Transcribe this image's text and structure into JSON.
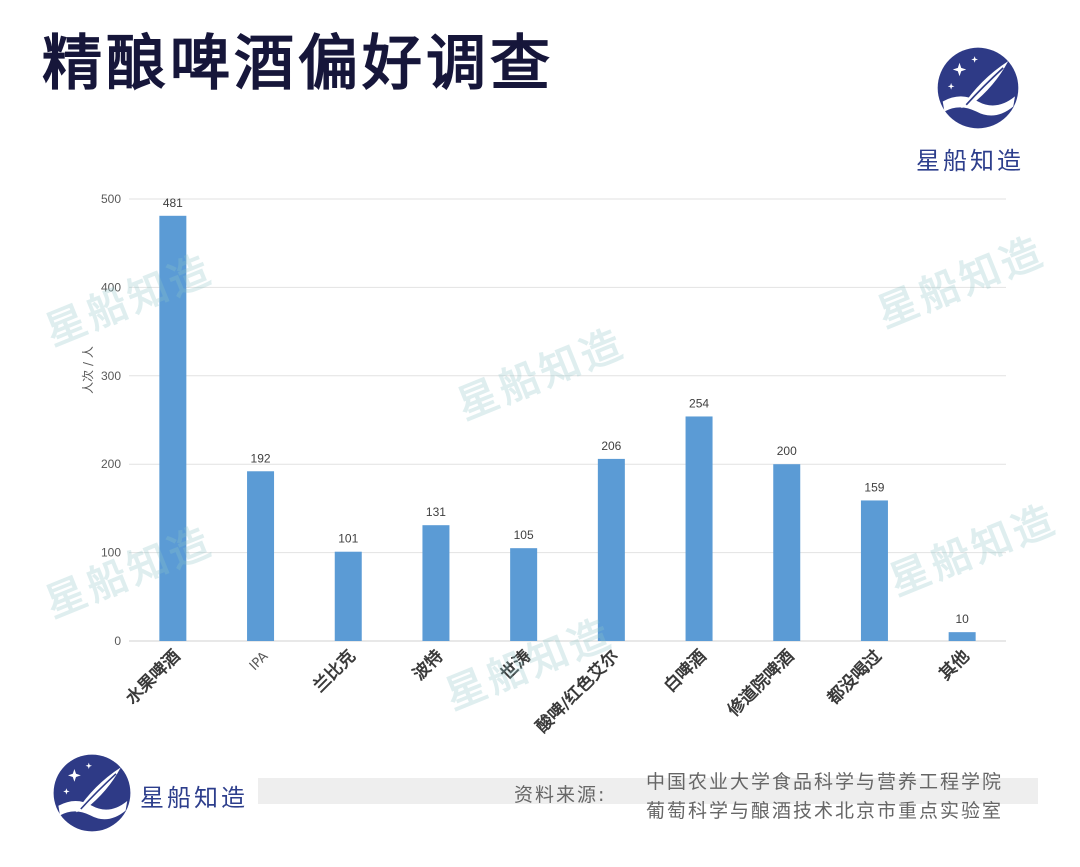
{
  "header": {
    "title": "精酿啤酒偏好调查",
    "brand": "星船知造"
  },
  "watermark_text": "星船知造",
  "chart_data": {
    "type": "bar",
    "categories": [
      "水果啤酒",
      "IPA",
      "兰比克",
      "波特",
      "世涛",
      "酸啤/红色艾尔",
      "白啤酒",
      "修道院啤酒",
      "都没喝过",
      "其他"
    ],
    "values": [
      481,
      192,
      101,
      131,
      105,
      206,
      254,
      200,
      159,
      10
    ],
    "ylabel": "人次 / 人",
    "ylim": [
      0,
      500
    ],
    "yticks": [
      0,
      100,
      200,
      300,
      400,
      500
    ],
    "grid": true,
    "bar_color": "#5b9bd5",
    "data_labels": true
  },
  "footer": {
    "brand": "星船知造",
    "source_label": "资料来源:",
    "source_lines": [
      "中国农业大学食品科学与营养工程学院",
      "葡萄科学与酿酒技术北京市重点实验室"
    ]
  },
  "colors": {
    "title": "#16163a",
    "brand": "#2d3e8c",
    "logo_bg": "#2e3a86"
  },
  "icons": {
    "logo": "quill-feather-stars-icon"
  }
}
